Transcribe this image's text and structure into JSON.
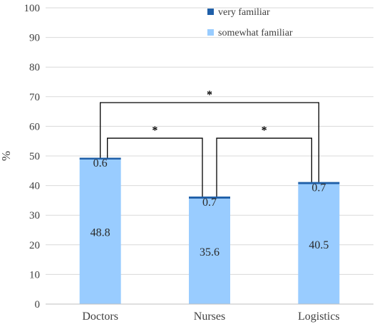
{
  "chart_data": {
    "type": "bar",
    "stacked": true,
    "ylabel": "%",
    "ylim": [
      0,
      100
    ],
    "yticks": [
      0,
      10,
      20,
      30,
      40,
      50,
      60,
      70,
      80,
      90,
      100
    ],
    "categories": [
      "Doctors",
      "Nurses",
      "Logistics"
    ],
    "series": [
      {
        "name": "somewhat familiar",
        "values": [
          48.8,
          35.6,
          40.5
        ],
        "color": "#99ccff"
      },
      {
        "name": "very familiar",
        "values": [
          0.6,
          0.7,
          0.7
        ],
        "color": "#1f5fa8"
      }
    ],
    "data_labels": {
      "somewhat familiar": [
        "48.8",
        "35.6",
        "40.5"
      ],
      "very familiar": [
        "0.6",
        "0.7",
        "0.7"
      ]
    },
    "legend_position": "top-right",
    "grid": true,
    "significance": [
      {
        "from": "Doctors",
        "to": "Nurses",
        "label": "*"
      },
      {
        "from": "Nurses",
        "to": "Logistics",
        "label": "*"
      },
      {
        "from": "Doctors",
        "to": "Logistics",
        "label": "*"
      }
    ]
  }
}
